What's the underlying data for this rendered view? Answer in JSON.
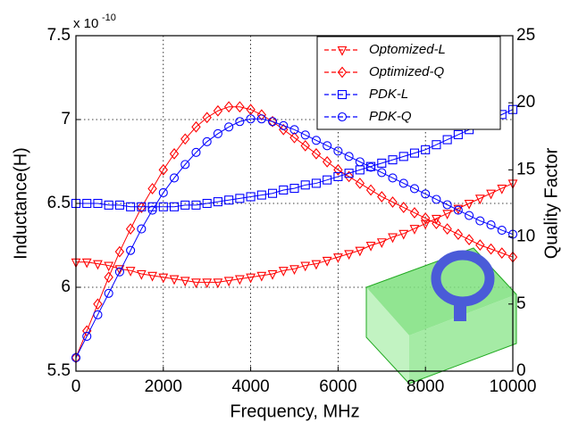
{
  "chart_data": {
    "type": "line",
    "x_label": "Frequency, MHz",
    "y_label": "Inductance(H)",
    "y2_label": "Quality Factor",
    "y_multiplier": "x 10",
    "y_multiplier_exponent": "-10",
    "x": [
      0,
      250,
      500,
      750,
      1000,
      1250,
      1500,
      1750,
      2000,
      2250,
      2500,
      2750,
      3000,
      3250,
      3500,
      3750,
      4000,
      4250,
      4500,
      4750,
      5000,
      5250,
      5500,
      5750,
      6000,
      6250,
      6500,
      6750,
      7000,
      7250,
      7500,
      7750,
      8000,
      8250,
      8500,
      8750,
      9000,
      9250,
      9500,
      9750,
      10000
    ],
    "xlim": [
      0,
      10000
    ],
    "xticks": [
      0,
      2000,
      4000,
      6000,
      8000,
      10000
    ],
    "ylim": [
      5.5,
      7.5
    ],
    "yticks": [
      5.5,
      6,
      6.5,
      7,
      7.5
    ],
    "y2lim": [
      0,
      25
    ],
    "y2ticks": [
      0,
      5,
      10,
      15,
      20,
      25
    ],
    "grid": true,
    "legend": "upper right",
    "series": [
      {
        "name": "Optomized-L",
        "color": "#ff0000",
        "marker": "triangle-down",
        "axis": "y",
        "values": [
          6.15,
          6.15,
          6.14,
          6.13,
          6.11,
          6.1,
          6.08,
          6.07,
          6.06,
          6.05,
          6.04,
          6.03,
          6.03,
          6.03,
          6.04,
          6.05,
          6.06,
          6.07,
          6.08,
          6.1,
          6.11,
          6.13,
          6.14,
          6.16,
          6.18,
          6.2,
          6.22,
          6.25,
          6.27,
          6.3,
          6.32,
          6.35,
          6.38,
          6.41,
          6.44,
          6.47,
          6.5,
          6.53,
          6.56,
          6.59,
          6.62
        ]
      },
      {
        "name": "Optimized-Q",
        "color": "#ff0000",
        "marker": "diamond",
        "axis": "y2",
        "values": [
          1.0,
          3.0,
          5.0,
          7.0,
          8.9,
          10.6,
          12.2,
          13.6,
          15.0,
          16.2,
          17.3,
          18.2,
          18.9,
          19.4,
          19.7,
          19.7,
          19.5,
          19.1,
          18.6,
          18.0,
          17.4,
          16.8,
          16.2,
          15.6,
          15.0,
          14.5,
          14.0,
          13.5,
          13.0,
          12.6,
          12.2,
          11.8,
          11.4,
          11.0,
          10.6,
          10.2,
          9.8,
          9.4,
          9.1,
          8.8,
          8.5
        ]
      },
      {
        "name": "PDK-L",
        "color": "#0000ff",
        "marker": "square",
        "axis": "y",
        "values": [
          6.5,
          6.5,
          6.5,
          6.49,
          6.49,
          6.48,
          6.48,
          6.48,
          6.48,
          6.48,
          6.49,
          6.49,
          6.5,
          6.51,
          6.52,
          6.53,
          6.54,
          6.55,
          6.56,
          6.58,
          6.59,
          6.61,
          6.62,
          6.64,
          6.66,
          6.68,
          6.7,
          6.72,
          6.74,
          6.76,
          6.78,
          6.8,
          6.82,
          6.85,
          6.88,
          6.91,
          6.94,
          6.97,
          7.0,
          7.03,
          7.06
        ]
      },
      {
        "name": "PDK-Q",
        "color": "#0000ff",
        "marker": "circle",
        "axis": "y2",
        "values": [
          1.0,
          2.6,
          4.2,
          5.8,
          7.4,
          9.0,
          10.6,
          12.0,
          13.3,
          14.4,
          15.4,
          16.3,
          17.1,
          17.7,
          18.2,
          18.6,
          18.8,
          18.8,
          18.6,
          18.3,
          18.0,
          17.6,
          17.2,
          16.8,
          16.4,
          16.0,
          15.6,
          15.2,
          14.8,
          14.4,
          14.0,
          13.6,
          13.2,
          12.8,
          12.4,
          12.0,
          11.6,
          11.2,
          10.9,
          10.5,
          10.2
        ]
      }
    ]
  }
}
